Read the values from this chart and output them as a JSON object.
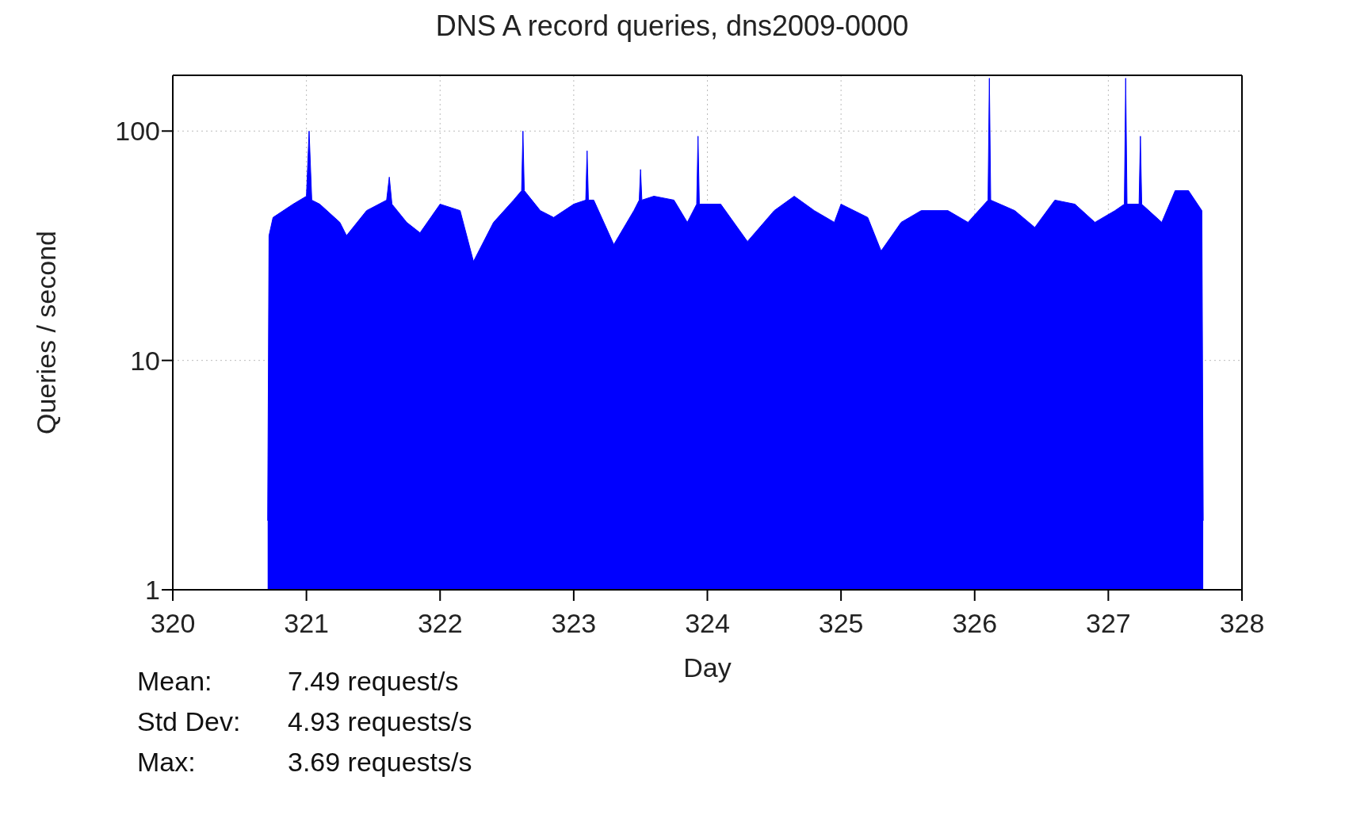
{
  "chart_data": {
    "type": "area",
    "title": "DNS A record queries, dns2009-0000",
    "xlabel": "Day",
    "ylabel": "Queries / second",
    "annotations": [
      "Mean: 7.49 request/s",
      "Std Dev: 4.93 requests/s",
      "Max: 3.69 requests/s"
    ],
    "log": "y",
    "grid": true,
    "xlim": [
      320,
      328
    ],
    "xticks": [
      320,
      321,
      322,
      323,
      324,
      325,
      326,
      327,
      328
    ],
    "ylim": [
      1,
      175
    ],
    "yticks": [
      1,
      10,
      100
    ],
    "series": [
      {
        "color": "#0000ff",
        "x": [
          320.71,
          320.72,
          320.75,
          320.9,
          321.0,
          321.02,
          321.04,
          321.1,
          321.25,
          321.3,
          321.45,
          321.6,
          321.62,
          321.64,
          321.75,
          321.85,
          322.0,
          322.15,
          322.25,
          322.4,
          322.55,
          322.61,
          322.62,
          322.63,
          322.75,
          322.85,
          323.0,
          323.09,
          323.1,
          323.11,
          323.15,
          323.3,
          323.45,
          323.49,
          323.5,
          323.51,
          323.6,
          323.75,
          323.85,
          323.92,
          323.93,
          323.94,
          324.1,
          324.3,
          324.5,
          324.65,
          324.8,
          324.95,
          325.0,
          325.2,
          325.3,
          325.45,
          325.6,
          325.8,
          325.95,
          326.1,
          326.11,
          326.12,
          326.3,
          326.45,
          326.6,
          326.75,
          326.9,
          327.05,
          327.12,
          327.13,
          327.14,
          327.23,
          327.24,
          327.25,
          327.4,
          327.5,
          327.6,
          327.7,
          327.71
        ],
        "values": [
          2,
          35,
          42,
          48,
          52,
          100,
          50,
          48,
          40,
          35,
          45,
          50,
          63,
          48,
          40,
          36,
          48,
          45,
          27,
          40,
          50,
          55,
          100,
          55,
          45,
          42,
          48,
          50,
          82,
          50,
          50,
          32,
          45,
          50,
          68,
          50,
          52,
          50,
          40,
          48,
          95,
          48,
          48,
          33,
          45,
          52,
          45,
          40,
          48,
          42,
          30,
          40,
          45,
          45,
          40,
          50,
          170,
          50,
          45,
          38,
          50,
          48,
          40,
          45,
          48,
          170,
          48,
          48,
          95,
          48,
          40,
          55,
          55,
          45,
          2
        ]
      }
    ]
  }
}
